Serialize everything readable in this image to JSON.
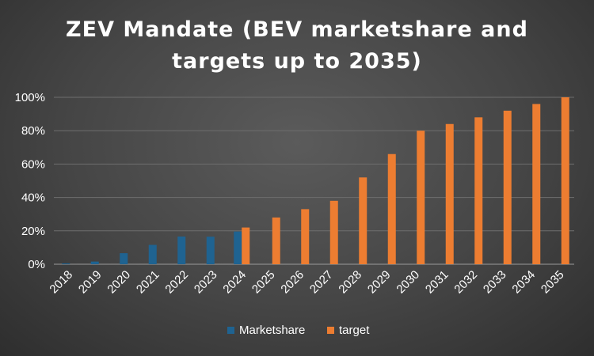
{
  "chart_data": {
    "type": "bar",
    "title_line1": "ZEV Mandate (BEV marketshare and",
    "title_line2": "targets up to 2035)",
    "xlabel": "",
    "ylabel": "",
    "ylim": [
      0,
      100
    ],
    "yticks": [
      "0%",
      "20%",
      "40%",
      "60%",
      "80%",
      "100%"
    ],
    "grid": true,
    "legend_position": "bottom",
    "categories": [
      "2018",
      "2019",
      "2020",
      "2021",
      "2022",
      "2023",
      "2024",
      "2025",
      "2026",
      "2027",
      "2028",
      "2029",
      "2030",
      "2031",
      "2032",
      "2033",
      "2034",
      "2035"
    ],
    "series": [
      {
        "name": "Marketshare",
        "color": "#1f6391",
        "values": [
          0.5,
          1.6,
          6.6,
          11.6,
          16.6,
          16.5,
          19.6,
          null,
          null,
          null,
          null,
          null,
          null,
          null,
          null,
          null,
          null,
          null
        ]
      },
      {
        "name": "target",
        "color": "#ed7d31",
        "values": [
          null,
          null,
          null,
          null,
          null,
          null,
          22,
          28,
          33,
          38,
          52,
          66,
          80,
          84,
          88,
          92,
          96,
          100
        ]
      }
    ]
  }
}
